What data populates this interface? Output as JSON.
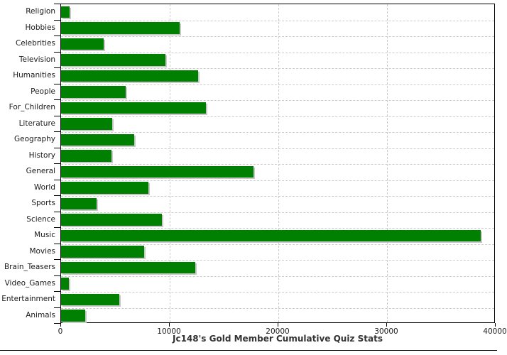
{
  "chart_data": {
    "type": "bar",
    "orientation": "horizontal",
    "title": "Jc148's Gold Member Cumulative Quiz Stats",
    "categories": [
      "Religion",
      "Hobbies",
      "Celebrities",
      "Television",
      "Humanities",
      "People",
      "For_Children",
      "Literature",
      "Geography",
      "History",
      "General",
      "World",
      "Sports",
      "Science",
      "Music",
      "Movies",
      "Brain_Teasers",
      "Video_Games",
      "Entertainment",
      "Animals"
    ],
    "values": [
      770,
      10890,
      3890,
      9630,
      12620,
      5970,
      13330,
      4710,
      6720,
      4640,
      17720,
      8070,
      3300,
      9300,
      38650,
      7620,
      12360,
      720,
      5330,
      2210
    ],
    "xlabel": "",
    "ylabel": "",
    "xlim": [
      0,
      40000
    ],
    "xticks": [
      0,
      10000,
      20000,
      30000,
      40000
    ],
    "grid": true,
    "legend": "none",
    "colors": {
      "bar": "#008000",
      "bar_shadow": "#c8c8c8",
      "gridline": "#cccccc",
      "axis": "#000000",
      "text": "#1a1a1a",
      "title_text": "#333333",
      "background": "#ffffff"
    }
  }
}
